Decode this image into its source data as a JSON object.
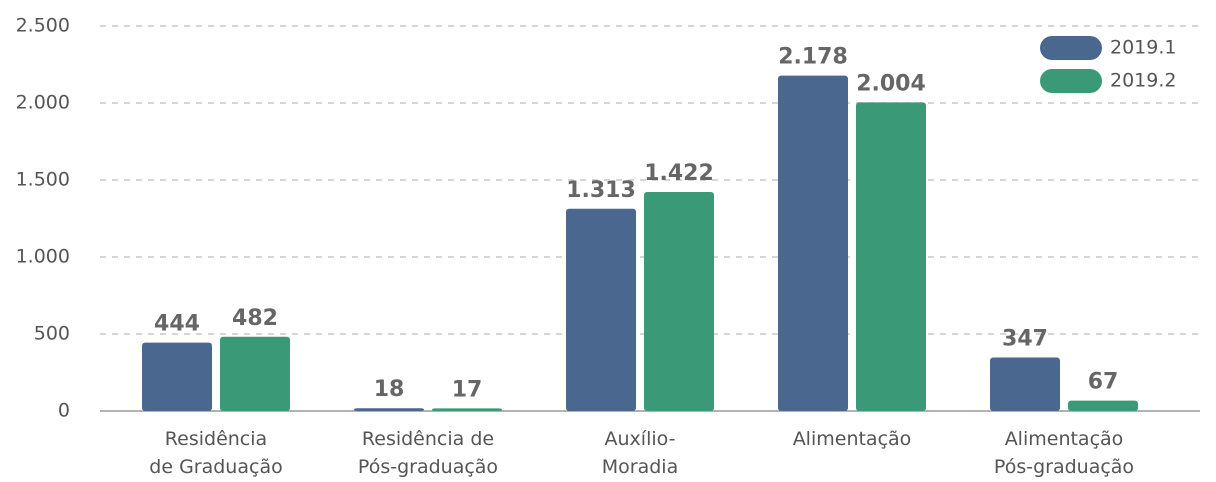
{
  "chart_data": {
    "type": "bar",
    "categories": [
      [
        "Residência",
        "de Graduação"
      ],
      [
        "Residência de",
        "Pós-graduação"
      ],
      [
        "Auxílio-",
        "Moradia"
      ],
      [
        "Alimentação"
      ],
      [
        "Alimentação",
        "Pós-graduação"
      ]
    ],
    "series": [
      {
        "name": "2019.1",
        "color": "#4a6790",
        "values": [
          444,
          18,
          1313,
          2178,
          347
        ],
        "value_labels": [
          "444",
          "18",
          "1.313",
          "2.178",
          "347"
        ]
      },
      {
        "name": "2019.2",
        "color": "#3a9a77",
        "values": [
          482,
          17,
          1422,
          2004,
          67
        ],
        "value_labels": [
          "482",
          "17",
          "1.422",
          "2.004",
          "67"
        ]
      }
    ],
    "ylim": [
      0,
      2500
    ],
    "yticks": [
      0,
      500,
      {
        "value": 1000,
        "label": "1.000"
      },
      {
        "value": 1500,
        "label": "1.500"
      },
      {
        "value": 2000,
        "label": "2.000"
      },
      {
        "value": 2500,
        "label": "2.500"
      }
    ],
    "grid": true,
    "legend": "upper right"
  }
}
